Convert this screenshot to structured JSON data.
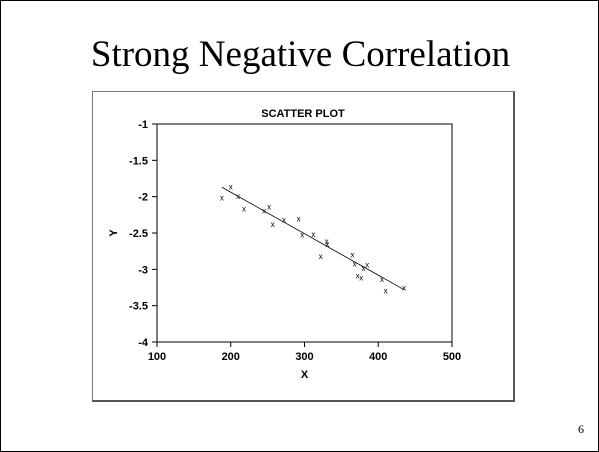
{
  "slide": {
    "title": "Strong Negative Correlation",
    "page_number": "6"
  },
  "chart_data": {
    "type": "scatter",
    "title": "SCATTER PLOT",
    "xlabel": "X",
    "ylabel": "Y",
    "xlim": [
      100,
      500
    ],
    "ylim": [
      -4,
      -1
    ],
    "x_ticks": [
      "100",
      "200",
      "300",
      "400",
      "500"
    ],
    "y_ticks": [
      "-1",
      "-1.5",
      "-2",
      "-2.5",
      "-3",
      "-3.5",
      "-4"
    ],
    "grid": false,
    "marker": "x",
    "points": [
      {
        "x": 188,
        "y": -2.02
      },
      {
        "x": 200,
        "y": -1.87
      },
      {
        "x": 210,
        "y": -2.0
      },
      {
        "x": 218,
        "y": -2.17
      },
      {
        "x": 245,
        "y": -2.2
      },
      {
        "x": 252,
        "y": -2.14
      },
      {
        "x": 257,
        "y": -2.38
      },
      {
        "x": 272,
        "y": -2.32
      },
      {
        "x": 292,
        "y": -2.31
      },
      {
        "x": 297,
        "y": -2.53
      },
      {
        "x": 312,
        "y": -2.52
      },
      {
        "x": 322,
        "y": -2.82
      },
      {
        "x": 330,
        "y": -2.62
      },
      {
        "x": 331,
        "y": -2.66
      },
      {
        "x": 365,
        "y": -2.8
      },
      {
        "x": 368,
        "y": -2.93
      },
      {
        "x": 372,
        "y": -3.09
      },
      {
        "x": 377,
        "y": -3.12
      },
      {
        "x": 380,
        "y": -2.99
      },
      {
        "x": 385,
        "y": -2.94
      },
      {
        "x": 405,
        "y": -3.14
      },
      {
        "x": 410,
        "y": -3.3
      },
      {
        "x": 435,
        "y": -3.26
      }
    ],
    "fit_line": {
      "x1": 188,
      "y1": -1.87,
      "x2": 435,
      "y2": -3.28
    }
  }
}
